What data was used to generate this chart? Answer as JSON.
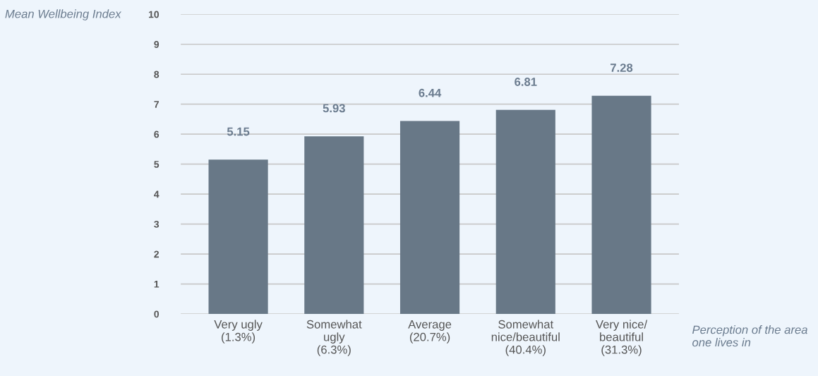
{
  "chart_data": {
    "type": "bar",
    "ylabel": "Mean Wellbeing Index",
    "xlabel": "Perception of the area one lives in",
    "categories": [
      "Very ugly\n(1.3%)",
      "Somewhat\nugly\n(6.3%)",
      "Average\n(20.7%)",
      "Somewhat\nnice/beautiful\n(40.4%)",
      "Very nice/\nbeautiful\n(31.3%)"
    ],
    "values": [
      5.15,
      5.93,
      6.44,
      6.81,
      7.28
    ],
    "color": "#687887",
    "ylim": [
      0,
      10
    ],
    "yticks": [
      0,
      1,
      2,
      3,
      4,
      5,
      6,
      7,
      8,
      9,
      10
    ],
    "grid": "y",
    "data_labels": true,
    "legend": false
  }
}
